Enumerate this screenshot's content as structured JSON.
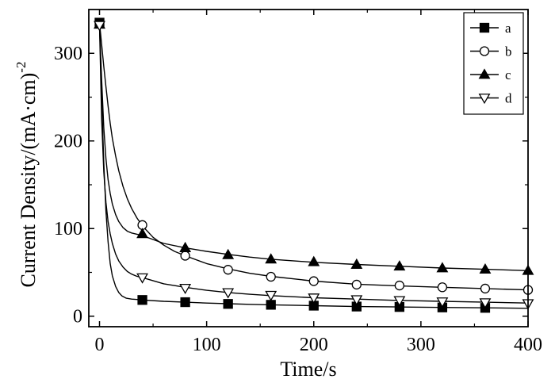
{
  "chart_data": {
    "type": "line",
    "xlabel": "Time/s",
    "ylabel_main": "Current Density/(mA·cm)",
    "ylabel_sup": "-2",
    "xlim": [
      -10,
      400
    ],
    "ylim": [
      -12,
      350
    ],
    "xticks": [
      0,
      100,
      200,
      300,
      400
    ],
    "yticks": [
      0,
      100,
      200,
      300
    ],
    "xtick_labels": [
      "0",
      "100",
      "200",
      "300",
      "400"
    ],
    "ytick_labels": [
      "0",
      "100",
      "200",
      "300"
    ],
    "grid": false,
    "legend_position": "top-right",
    "series": [
      {
        "name": "a",
        "marker": "square-filled",
        "x": [
          0,
          2,
          4,
          6,
          8,
          10,
          12,
          15,
          18,
          21,
          25,
          30,
          35,
          40,
          60,
          80,
          100,
          120,
          140,
          160,
          200,
          240,
          280,
          320,
          360,
          400
        ],
        "y": [
          335,
          250,
          175,
          120,
          85,
          60,
          46,
          34,
          27,
          23,
          20.5,
          19.5,
          19,
          18.5,
          17,
          16,
          15,
          14.2,
          13.5,
          13,
          12,
          11,
          10.5,
          10,
          9.5,
          9
        ],
        "markers": [
          [
            0,
            335
          ],
          [
            40,
            18.5
          ],
          [
            80,
            16
          ],
          [
            120,
            14
          ],
          [
            160,
            13
          ],
          [
            200,
            12
          ],
          [
            240,
            11
          ],
          [
            280,
            10.5
          ],
          [
            320,
            10
          ],
          [
            360,
            9.5
          ]
        ]
      },
      {
        "name": "b",
        "marker": "circle-open",
        "x": [
          0,
          2,
          4,
          6,
          8,
          10,
          12,
          15,
          18,
          22,
          26,
          30,
          35,
          40,
          50,
          60,
          70,
          80,
          100,
          120,
          140,
          160,
          200,
          240,
          280,
          320,
          360,
          400
        ],
        "y": [
          335,
          310,
          285,
          262,
          240,
          220,
          203,
          183,
          166,
          148,
          134,
          123,
          112,
          103,
          90,
          81,
          74,
          69,
          60,
          54,
          49,
          45.5,
          40,
          36.5,
          34.5,
          33,
          31.5,
          30
        ],
        "markers": [
          [
            40,
            104
          ],
          [
            80,
            69
          ],
          [
            120,
            53
          ],
          [
            160,
            45
          ],
          [
            200,
            40
          ],
          [
            240,
            36
          ],
          [
            280,
            35
          ],
          [
            320,
            33
          ],
          [
            360,
            31.5
          ],
          [
            400,
            30
          ]
        ]
      },
      {
        "name": "c",
        "marker": "triangle-up-filled",
        "x": [
          0,
          2,
          4,
          6,
          8,
          10,
          12,
          15,
          18,
          22,
          26,
          30,
          35,
          40,
          60,
          80,
          100,
          120,
          140,
          160,
          200,
          240,
          280,
          320,
          360,
          400
        ],
        "y": [
          333,
          270,
          215,
          180,
          156,
          140,
          128,
          116,
          108,
          101,
          97,
          95,
          93.5,
          92,
          83,
          78,
          74,
          70.5,
          67.5,
          65,
          61.5,
          59,
          57,
          55,
          53.5,
          52
        ],
        "markers": [
          [
            0,
            333
          ],
          [
            40,
            94
          ],
          [
            80,
            78
          ],
          [
            120,
            70
          ],
          [
            160,
            65
          ],
          [
            200,
            62
          ],
          [
            240,
            59
          ],
          [
            280,
            57
          ],
          [
            320,
            55
          ],
          [
            360,
            53.5
          ],
          [
            400,
            52
          ]
        ]
      },
      {
        "name": "d",
        "marker": "triangle-down-open",
        "x": [
          0,
          2,
          4,
          6,
          8,
          10,
          12,
          15,
          18,
          22,
          26,
          30,
          35,
          40,
          60,
          80,
          100,
          120,
          140,
          160,
          200,
          240,
          280,
          320,
          360,
          400
        ],
        "y": [
          332,
          225,
          165,
          130,
          108,
          94,
          83,
          71,
          63,
          56,
          51,
          48,
          45.5,
          44,
          37,
          33,
          29.5,
          27,
          25,
          23.5,
          21,
          19.5,
          18,
          17,
          16,
          15
        ],
        "markers": [
          [
            0,
            332
          ],
          [
            40,
            44
          ],
          [
            80,
            32
          ],
          [
            120,
            27
          ],
          [
            160,
            24
          ],
          [
            200,
            21
          ],
          [
            240,
            19
          ],
          [
            280,
            18
          ],
          [
            320,
            16.5
          ],
          [
            360,
            15.5
          ],
          [
            400,
            14.5
          ]
        ]
      }
    ]
  }
}
